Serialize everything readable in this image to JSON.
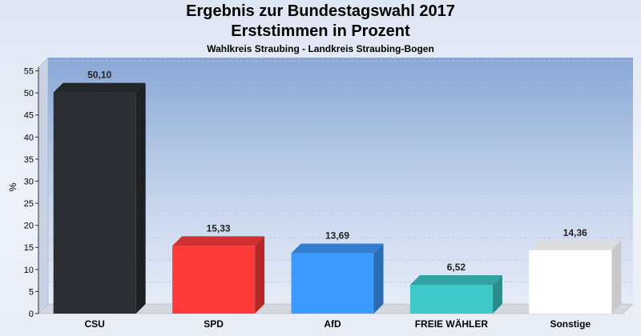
{
  "title": "Ergebnis zur Bundestagswahl 2017",
  "subtitle": "Erststimmen in Prozent",
  "caption": "Wahlkreis Straubing - Landkreis Straubing-Bogen",
  "chart_data": {
    "type": "bar",
    "ylabel": "%",
    "xlabel": "",
    "ylim": [
      0,
      58
    ],
    "yticks": [
      0,
      5,
      10,
      15,
      20,
      25,
      30,
      35,
      40,
      45,
      50,
      55
    ],
    "grid": true,
    "categories": [
      "CSU",
      "SPD",
      "AfD",
      "FREIE WÄHLER",
      "Sonstige"
    ],
    "values": [
      50.1,
      15.33,
      13.69,
      6.52,
      14.36
    ],
    "value_labels": [
      "50,10",
      "15,33",
      "13,69",
      "6,52",
      "14,36"
    ],
    "colors": [
      "#2b2e33",
      "#ff3a3a",
      "#3d9bff",
      "#3ec8c8",
      "#ffffff"
    ]
  }
}
